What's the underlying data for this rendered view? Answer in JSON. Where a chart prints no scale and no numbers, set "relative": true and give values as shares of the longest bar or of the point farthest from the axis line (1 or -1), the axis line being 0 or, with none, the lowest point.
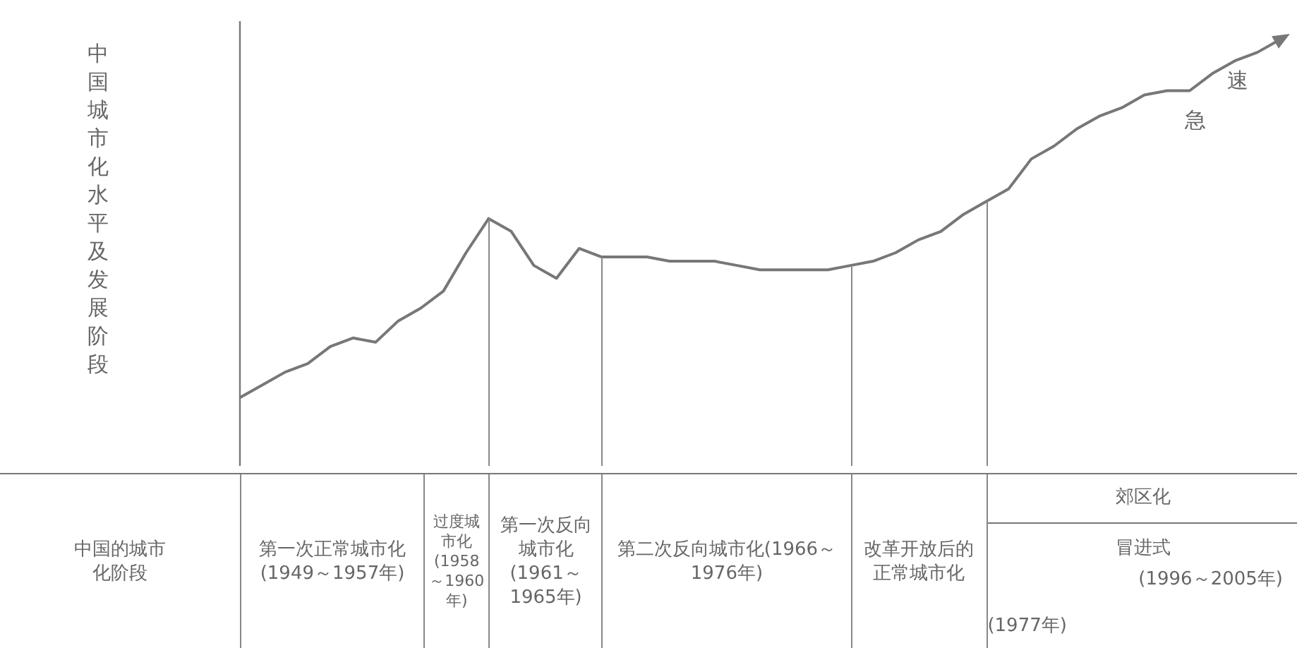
{
  "chart_data": {
    "type": "line",
    "relative": true,
    "categories": [
      null,
      null,
      null,
      null,
      null,
      null,
      null,
      null,
      null,
      null,
      null,
      null,
      null,
      null,
      null,
      null,
      null,
      null,
      null,
      null,
      null,
      null,
      null,
      null,
      null,
      null,
      null,
      null,
      null,
      null,
      null,
      null,
      null,
      null,
      null,
      null,
      null,
      null,
      null,
      null,
      null,
      null,
      null,
      null,
      null,
      null,
      null
    ],
    "series": [
      {
        "color": "#777777",
        "values": [
          0.16,
          0.19,
          0.22,
          0.24,
          0.28,
          0.3,
          0.29,
          0.34,
          0.37,
          0.41,
          0.5,
          0.58,
          0.55,
          0.47,
          0.44,
          0.51,
          0.49,
          0.49,
          0.49,
          0.48,
          0.48,
          0.48,
          0.47,
          0.46,
          0.46,
          0.46,
          0.46,
          0.47,
          0.48,
          0.5,
          0.53,
          0.55,
          0.59,
          0.62,
          0.65,
          0.72,
          0.75,
          0.79,
          0.82,
          0.84,
          0.87,
          0.88,
          0.88,
          0.92,
          0.95,
          0.97,
          1
        ]
      }
    ],
    "annotations": [
      "急",
      "速",
      "中国的城市化阶段",
      "第一次正常城市化(1949～1957年)",
      "过度城市化(1958～1960年)",
      "第一次反向城市化(1961～1965年)",
      "第二次反向城市化(1966～1976年)",
      "改革开放后的正常城市化",
      "(1977年)",
      "郊区化",
      "冒进式",
      "(1996～2005年)",
      "中国城市化水平及发展阶段"
    ],
    "legend": false,
    "marker": "none",
    "line_style": "solid"
  }
}
